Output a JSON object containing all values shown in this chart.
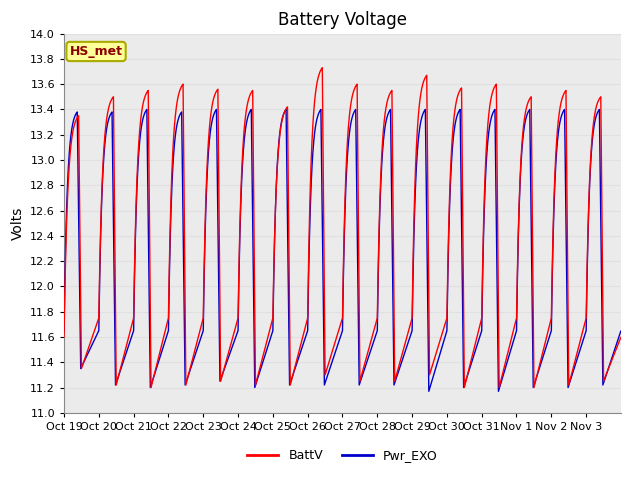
{
  "title": "Battery Voltage",
  "ylabel": "Volts",
  "ylim": [
    11.0,
    14.0
  ],
  "yticks": [
    11.0,
    11.2,
    11.4,
    11.6,
    11.8,
    12.0,
    12.2,
    12.4,
    12.6,
    12.8,
    13.0,
    13.2,
    13.4,
    13.6,
    13.8,
    14.0
  ],
  "xlabel_ticks": [
    "Oct 19",
    "Oct 20",
    "Oct 21",
    "Oct 22",
    "Oct 23",
    "Oct 24",
    "Oct 25",
    "Oct 26",
    "Oct 27",
    "Oct 28",
    "Oct 29",
    "Oct 30",
    "Oct 31",
    "Nov 1",
    "Nov 2",
    "Nov 3"
  ],
  "batt_color": "#ff0000",
  "pwr_color": "#0000cc",
  "legend_label_batt": "BattV",
  "legend_label_pwr": "Pwr_EXO",
  "annotation_text": "HS_met",
  "annotation_bg": "#ffff99",
  "annotation_border": "#aaaa00",
  "grid_color": "#e0e0e0",
  "bg_color": "#ebebeb",
  "title_fontsize": 12,
  "axis_fontsize": 10,
  "tick_fontsize": 8,
  "batt_peaks": [
    13.35,
    13.5,
    13.55,
    13.6,
    13.56,
    13.55,
    13.42,
    13.73,
    13.6,
    13.55,
    13.67,
    13.57,
    13.6,
    13.5,
    13.55,
    13.5
  ],
  "batt_mins": [
    11.35,
    11.22,
    11.2,
    11.22,
    11.25,
    11.22,
    11.22,
    11.3,
    11.25,
    11.25,
    11.3,
    11.2,
    11.2,
    11.2,
    11.22,
    11.25
  ],
  "batt_start": [
    11.6,
    11.75,
    11.75,
    11.75,
    11.75,
    11.75,
    11.75,
    11.75,
    11.75,
    11.75,
    11.75,
    11.75,
    11.75,
    11.75,
    11.75,
    11.75
  ],
  "pwr_peaks": [
    13.38,
    13.38,
    13.4,
    13.38,
    13.4,
    13.4,
    13.4,
    13.4,
    13.4,
    13.4,
    13.4,
    13.4,
    13.4,
    13.4,
    13.4,
    13.4
  ],
  "pwr_mins": [
    11.35,
    11.22,
    11.2,
    11.22,
    11.25,
    11.2,
    11.22,
    11.22,
    11.22,
    11.22,
    11.17,
    11.2,
    11.17,
    11.2,
    11.2,
    11.22
  ],
  "pwr_start": [
    11.65,
    11.65,
    11.65,
    11.65,
    11.65,
    11.65,
    11.65,
    11.65,
    11.65,
    11.65,
    11.65,
    11.65,
    11.65,
    11.65,
    11.65,
    11.65
  ]
}
